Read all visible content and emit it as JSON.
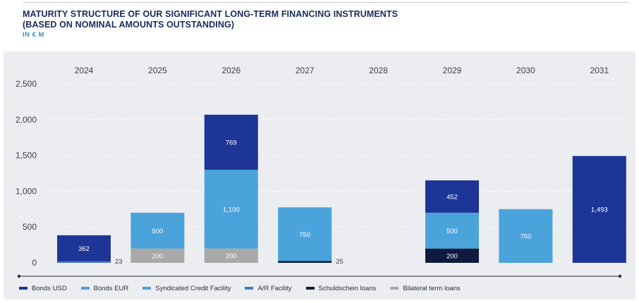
{
  "header": {
    "title_line1": "MATURITY STRUCTURE OF OUR SIGNIFICANT LONG-TERM FINANCING INSTRUMENTS",
    "title_line2": "(BASED ON NOMINAL AMOUNTS OUTSTANDING)",
    "unit": "IN € M"
  },
  "chart_data": {
    "type": "bar",
    "stacked": true,
    "title": "MATURITY STRUCTURE OF OUR SIGNIFICANT LONG-TERM FINANCING INSTRUMENTS (BASED ON NOMINAL AMOUNTS OUTSTANDING)",
    "ylabel": "IN € M",
    "xlabel": "",
    "categories": [
      "2024",
      "2025",
      "2026",
      "2027",
      "2028",
      "2029",
      "2030",
      "2031"
    ],
    "ylim": [
      0,
      2500
    ],
    "yticks": [
      0,
      500,
      1000,
      1500,
      2000,
      2500
    ],
    "ytick_labels": [
      "0",
      "500",
      "1,000",
      "1,500",
      "2,000",
      "2,500"
    ],
    "grid": true,
    "legend_position": "bottom",
    "series": [
      {
        "name": "Schuldschein loans",
        "color": "#0d1b3e",
        "values": [
          0,
          0,
          0,
          25,
          0,
          200,
          0,
          0
        ],
        "labels": [
          "",
          "",
          "",
          "25",
          "",
          "200",
          "",
          ""
        ]
      },
      {
        "name": "Bilateral term loans",
        "color": "#a9a9a9",
        "values": [
          0,
          200,
          200,
          0,
          0,
          0,
          0,
          0
        ],
        "labels": [
          "",
          "200",
          "200",
          "",
          "",
          "",
          "",
          ""
        ]
      },
      {
        "name": "A/R Facility",
        "color": "#4a78c0",
        "values": [
          23,
          0,
          0,
          0,
          0,
          0,
          0,
          0
        ],
        "labels": [
          "23",
          "",
          "",
          "",
          "",
          "",
          "",
          ""
        ]
      },
      {
        "name": "Syndicated Credit Facility",
        "color": "#4ba3dc",
        "values": [
          0,
          0,
          0,
          0,
          0,
          0,
          0,
          0
        ],
        "labels": [
          "",
          "",
          "",
          "",
          "",
          "",
          "",
          ""
        ]
      },
      {
        "name": "Bonds EUR",
        "color": "#4ba3dc",
        "values": [
          0,
          500,
          1100,
          750,
          0,
          500,
          750,
          0
        ],
        "labels": [
          "",
          "500",
          "1,100",
          "750",
          "",
          "500",
          "750",
          ""
        ]
      },
      {
        "name": "Bonds USD",
        "color": "#1c3596",
        "values": [
          362,
          0,
          769,
          0,
          0,
          452,
          0,
          1493
        ],
        "labels": [
          "362",
          "",
          "769",
          "",
          "",
          "452",
          "",
          "1,493"
        ]
      }
    ],
    "legend": [
      {
        "name": "Bonds USD",
        "color": "#1c3596"
      },
      {
        "name": "Bonds EUR",
        "color": "#4ba3dc"
      },
      {
        "name": "Syndicated Credit Facility",
        "color": "#4ba3dc"
      },
      {
        "name": "A/R Facility",
        "color": "#4a78c0"
      },
      {
        "name": "Schuldschein loans",
        "color": "#0d1b3e"
      },
      {
        "name": "Bilateral term loans",
        "color": "#a9a9a9"
      }
    ]
  }
}
